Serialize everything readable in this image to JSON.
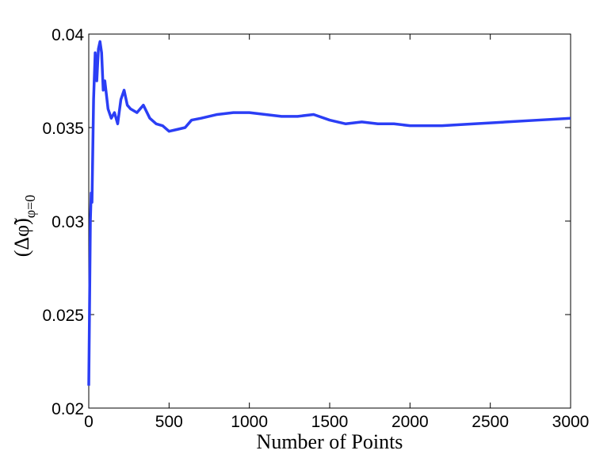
{
  "chart_data": {
    "type": "line",
    "xlabel": "Number of Points",
    "ylabel": "(Δφ̃)",
    "ylabel_subscript": "φ=0",
    "x": [
      0,
      5,
      10,
      15,
      20,
      30,
      40,
      50,
      60,
      70,
      80,
      90,
      100,
      120,
      140,
      160,
      180,
      200,
      220,
      240,
      260,
      300,
      340,
      380,
      420,
      460,
      500,
      550,
      600,
      640,
      700,
      800,
      900,
      1000,
      1100,
      1200,
      1300,
      1400,
      1500,
      1600,
      1700,
      1800,
      1900,
      2000,
      2200,
      2400,
      2600,
      2800,
      3000
    ],
    "series": [
      {
        "color": "#2b3ef5",
        "values": [
          0.0212,
          0.0255,
          0.03,
          0.0315,
          0.031,
          0.0365,
          0.039,
          0.0375,
          0.0392,
          0.0396,
          0.039,
          0.037,
          0.0375,
          0.036,
          0.0355,
          0.0358,
          0.0352,
          0.0365,
          0.037,
          0.0362,
          0.036,
          0.0358,
          0.0362,
          0.0355,
          0.0352,
          0.0351,
          0.0348,
          0.0349,
          0.035,
          0.0354,
          0.0355,
          0.0357,
          0.0358,
          0.0358,
          0.0357,
          0.0356,
          0.0356,
          0.0357,
          0.0354,
          0.0352,
          0.0353,
          0.0352,
          0.0352,
          0.0351,
          0.0351,
          0.0352,
          0.0353,
          0.0354,
          0.0355
        ]
      }
    ],
    "xlim": [
      0,
      3000
    ],
    "xticks": [
      0,
      500,
      1000,
      1500,
      2000,
      2500,
      3000
    ],
    "ylim": [
      0.02,
      0.04
    ],
    "yticks": [
      0.02,
      0.025,
      0.03,
      0.035,
      0.04
    ]
  }
}
